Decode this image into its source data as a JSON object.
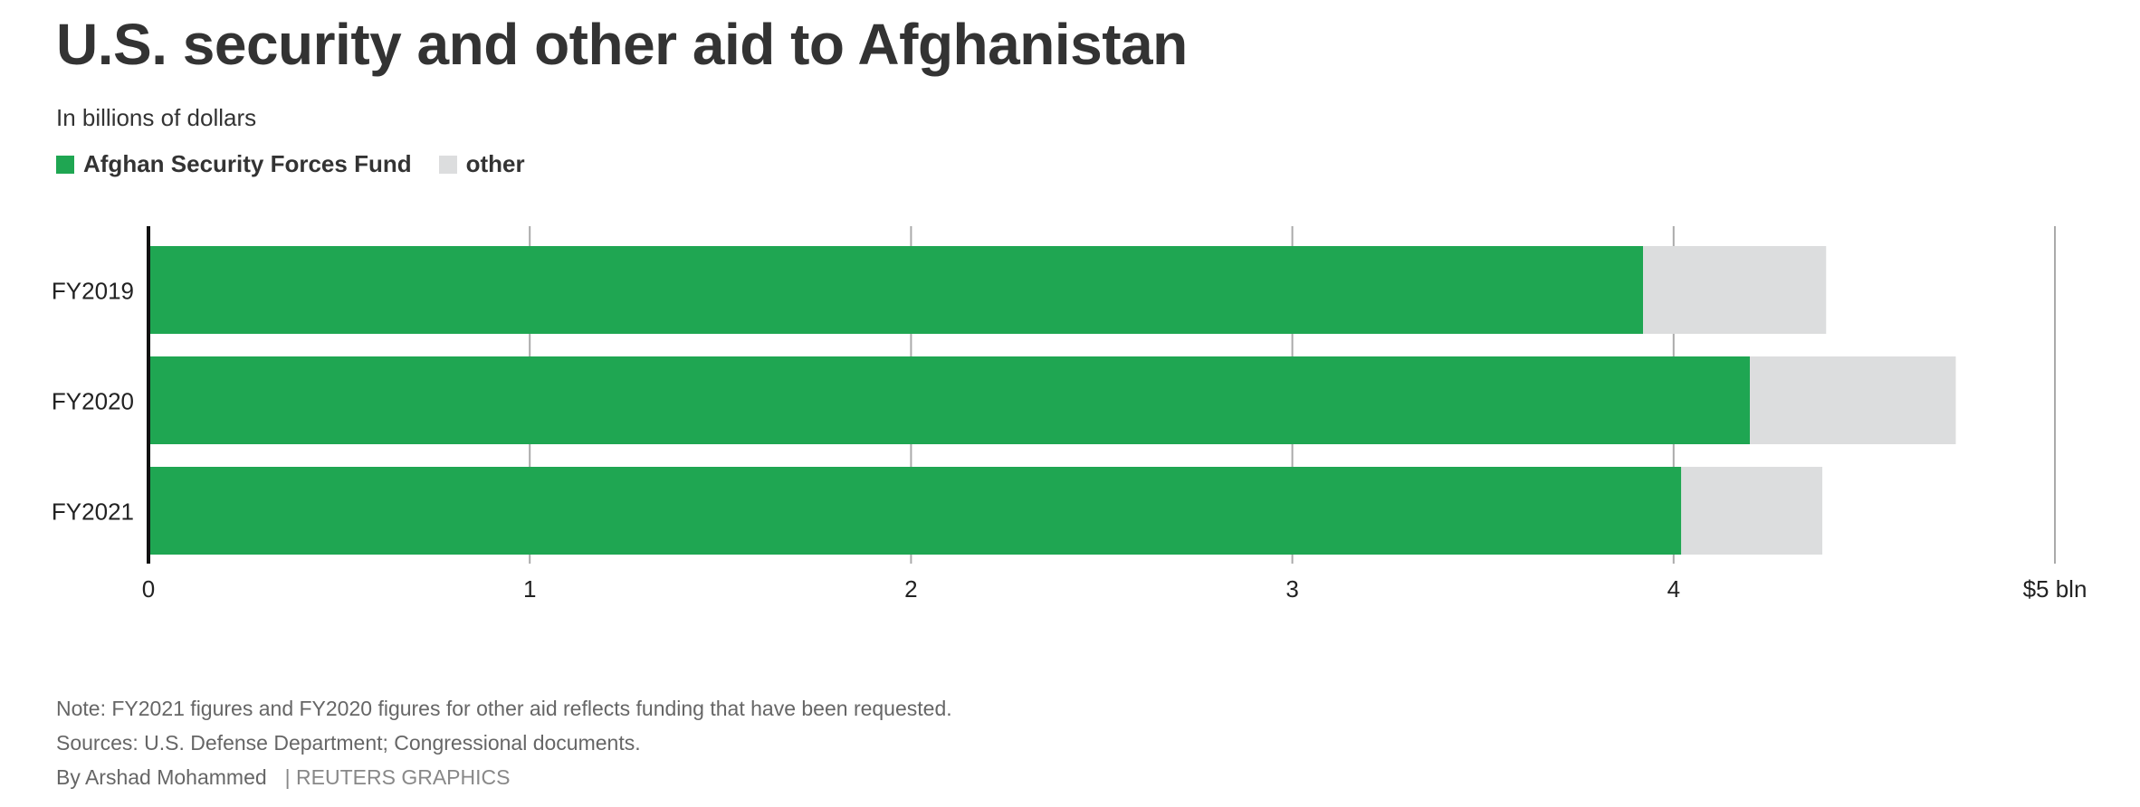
{
  "header": {
    "title": "U.S. security and other aid to Afghanistan",
    "subtitle": "In billions of dollars"
  },
  "legend": {
    "items": [
      {
        "label": "Afghan Security Forces Fund",
        "color": "#1fa652"
      },
      {
        "label": "other",
        "color": "#dcddde"
      }
    ]
  },
  "chart_data": {
    "type": "bar",
    "orientation": "horizontal",
    "stacked": true,
    "categories": [
      "FY2019",
      "FY2020",
      "FY2021"
    ],
    "series": [
      {
        "name": "Afghan Security Forces Fund",
        "color": "#1fa652",
        "values": [
          3.92,
          4.2,
          4.02
        ]
      },
      {
        "name": "other",
        "color": "#dcddde",
        "values": [
          0.48,
          0.54,
          0.37
        ]
      }
    ],
    "xlim": [
      0,
      5
    ],
    "x_ticks": [
      {
        "value": 0,
        "label": "0"
      },
      {
        "value": 1,
        "label": "1"
      },
      {
        "value": 2,
        "label": "2"
      },
      {
        "value": 3,
        "label": "3"
      },
      {
        "value": 4,
        "label": "4"
      },
      {
        "value": 5,
        "label": "$5 bln"
      }
    ],
    "grid": true,
    "legend_position": "top-left"
  },
  "footer": {
    "note": "Note: FY2021 figures and FY2020 figures for other aid reflects funding that have been requested.",
    "sources": "Sources: U.S. Defense Department; Congressional documents.",
    "byline": "By Arshad Mohammed",
    "credit": "| REUTERS GRAPHICS"
  }
}
